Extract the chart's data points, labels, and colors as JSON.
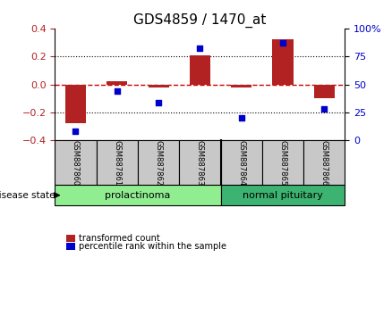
{
  "title": "GDS4859 / 1470_at",
  "samples": [
    "GSM887860",
    "GSM887861",
    "GSM887862",
    "GSM887863",
    "GSM887864",
    "GSM887865",
    "GSM887866"
  ],
  "red_bars": [
    -0.275,
    0.025,
    -0.02,
    0.205,
    -0.025,
    0.325,
    -0.1
  ],
  "blue_dots": [
    0.08,
    0.44,
    0.34,
    0.82,
    0.2,
    0.87,
    0.28
  ],
  "ylim_left": [
    -0.4,
    0.4
  ],
  "ylim_right": [
    0,
    1.0
  ],
  "yticks_left": [
    -0.4,
    -0.2,
    0.0,
    0.2,
    0.4
  ],
  "yticks_right": [
    0,
    0.25,
    0.5,
    0.75,
    1.0
  ],
  "ytick_labels_right": [
    "0",
    "25",
    "50",
    "75",
    "100%"
  ],
  "group1_label": "prolactinoma",
  "group2_label": "normal pituitary",
  "group1_indices": [
    0,
    1,
    2,
    3
  ],
  "group2_indices": [
    4,
    5,
    6
  ],
  "disease_state_label": "disease state",
  "legend_red_label": "transformed count",
  "legend_blue_label": "percentile rank within the sample",
  "bar_color": "#B22222",
  "dot_color": "#0000CC",
  "bar_width": 0.5,
  "red_dashed_color": "#CC0000",
  "group1_bg": "#90EE90",
  "group2_bg": "#3CB371",
  "sample_bg": "#C8C8C8",
  "title_fontsize": 11,
  "tick_fontsize": 8,
  "label_fontsize": 8
}
